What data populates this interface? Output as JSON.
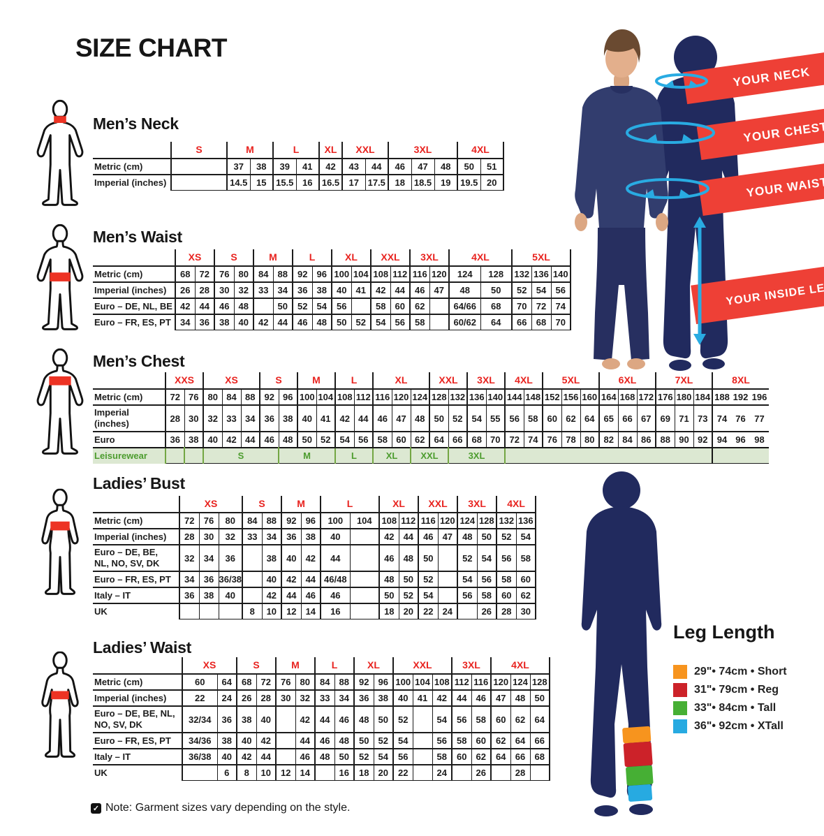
{
  "page": {
    "title": "SIZE CHART",
    "note": "Note: Garment sizes vary depending on the style."
  },
  "accent": {
    "red": "#e8231f",
    "ribbon_red": "#ee4036",
    "navy": "#212a5e",
    "cyan": "#29abe2",
    "green_text": "#4c9c2e",
    "green_bg": "#dce8d2"
  },
  "art": {
    "ribbons": [
      "YOUR NECK",
      "YOUR CHEST",
      "YOUR WAIST",
      "YOUR INSIDE LEG"
    ]
  },
  "leg_length": {
    "title": "Leg Length",
    "items": [
      {
        "color": "#f7941e",
        "label": "29\"• 74cm • Short"
      },
      {
        "color": "#cc2229",
        "label": "31\"• 79cm • Reg"
      },
      {
        "color": "#46af34",
        "label": "33\"• 84cm • Tall"
      },
      {
        "color": "#27aae1",
        "label": "36\"• 92cm • XTall"
      }
    ]
  },
  "sections": [
    {
      "id": "mens-neck",
      "title": "Men’s Neck",
      "label_w": 112,
      "cols": [
        80,
        33,
        33,
        33,
        33,
        33,
        33,
        33,
        33,
        33,
        33,
        33,
        33
      ],
      "groups": [
        {
          "l": "S",
          "s": 1
        },
        {
          "l": "M",
          "s": 2
        },
        {
          "l": "L",
          "s": 2
        },
        {
          "l": "XL",
          "s": 1
        },
        {
          "l": "XXL",
          "s": 2
        },
        {
          "l": "3XL",
          "s": 3
        },
        {
          "l": "4XL",
          "s": 2
        }
      ],
      "rows": [
        {
          "label": "Metric (cm)",
          "cells": [
            "",
            "37",
            "38",
            "39",
            "41",
            "42",
            "43",
            "44",
            "46",
            "47",
            "48",
            "50",
            "51"
          ]
        },
        {
          "label": "Imperial (inches)",
          "cells": [
            "",
            "14.5",
            "15",
            "15.5",
            "16",
            "16.5",
            "17",
            "17.5",
            "18",
            "18.5",
            "19",
            "19.5",
            "20"
          ]
        }
      ]
    },
    {
      "id": "mens-waist",
      "title": "Men’s Waist",
      "label_w": 118,
      "cols": [
        28,
        28,
        28,
        28,
        28,
        28,
        28,
        28,
        28,
        28,
        28,
        28,
        28,
        28,
        45,
        45,
        28,
        28,
        28
      ],
      "groups": [
        {
          "l": "XS",
          "s": 2
        },
        {
          "l": "S",
          "s": 2
        },
        {
          "l": "M",
          "s": 2
        },
        {
          "l": "L",
          "s": 2
        },
        {
          "l": "XL",
          "s": 2
        },
        {
          "l": "XXL",
          "s": 2
        },
        {
          "l": "3XL",
          "s": 2
        },
        {
          "l": "4XL",
          "s": 2
        },
        {
          "l": "5XL",
          "s": 3
        }
      ],
      "rows": [
        {
          "label": "Metric (cm)",
          "cells": [
            "68",
            "72",
            "76",
            "80",
            "84",
            "88",
            "92",
            "96",
            "100",
            "104",
            "108",
            "112",
            "116",
            "120",
            "124",
            "128",
            "132",
            "136",
            "140"
          ]
        },
        {
          "label": "Imperial (inches)",
          "cells": [
            "26",
            "28",
            "30",
            "32",
            "33",
            "34",
            "36",
            "38",
            "40",
            "41",
            "42",
            "44",
            "46",
            "47",
            "48",
            "50",
            "52",
            "54",
            "56"
          ]
        },
        {
          "label": "Euro – DE, NL, BE",
          "cells": [
            "42",
            "44",
            "46",
            "48",
            "",
            "50",
            "52",
            "54",
            "56",
            "",
            "58",
            "60",
            "62",
            "",
            "64/66",
            "68",
            "70",
            "72",
            "74"
          ]
        },
        {
          "label": "Euro – FR, ES, PT",
          "cells": [
            "34",
            "36",
            "38",
            "40",
            "42",
            "44",
            "46",
            "48",
            "50",
            "52",
            "54",
            "56",
            "58",
            "",
            "60/62",
            "64",
            "66",
            "68",
            "70"
          ]
        }
      ]
    },
    {
      "id": "mens-chest",
      "title": "Men’s Chest",
      "label_w": 104,
      "cols": [
        27,
        27,
        27,
        27,
        27,
        27,
        27,
        27,
        27,
        27,
        27,
        27,
        27,
        27,
        27,
        27,
        27,
        27,
        27,
        27,
        27,
        27,
        27,
        27,
        27,
        27,
        27,
        27,
        27,
        27,
        27,
        27
      ],
      "groups": [
        {
          "l": "XXS",
          "s": 2
        },
        {
          "l": "XS",
          "s": 3
        },
        {
          "l": "S",
          "s": 2
        },
        {
          "l": "M",
          "s": 2
        },
        {
          "l": "L",
          "s": 2
        },
        {
          "l": "XL",
          "s": 3
        },
        {
          "l": "XXL",
          "s": 2
        },
        {
          "l": "3XL",
          "s": 2
        },
        {
          "l": "4XL",
          "s": 2
        },
        {
          "l": "5XL",
          "s": 3
        },
        {
          "l": "6XL",
          "s": 3
        },
        {
          "l": "7XL",
          "s": 3
        },
        {
          "l": "8XL",
          "s": 3,
          "open": true
        }
      ],
      "rows": [
        {
          "label": "Metric (cm)",
          "cells": [
            "72",
            "76",
            "80",
            "84",
            "88",
            "92",
            "96",
            "100",
            "104",
            "108",
            "112",
            "116",
            "120",
            "124",
            "128",
            "132",
            "136",
            "140",
            "144",
            "148",
            "152",
            "156",
            "160",
            "164",
            "168",
            "172",
            "176",
            "180",
            "184",
            "188",
            "192",
            "196"
          ]
        },
        {
          "label": "Imperial (inches)",
          "cells": [
            "28",
            "30",
            "32",
            "33",
            "34",
            "36",
            "38",
            "40",
            "41",
            "42",
            "44",
            "46",
            "47",
            "48",
            "50",
            "52",
            "54",
            "55",
            "56",
            "58",
            "60",
            "62",
            "64",
            "65",
            "66",
            "67",
            "69",
            "71",
            "73",
            "74",
            "76",
            "77"
          ]
        },
        {
          "label": "Euro",
          "cells": [
            "36",
            "38",
            "40",
            "42",
            "44",
            "46",
            "48",
            "50",
            "52",
            "54",
            "56",
            "58",
            "60",
            "62",
            "64",
            "66",
            "68",
            "70",
            "72",
            "74",
            "76",
            "78",
            "80",
            "82",
            "84",
            "86",
            "88",
            "90",
            "92",
            "94",
            "96",
            "98"
          ]
        },
        {
          "label": "Leisurewear",
          "cls": "leisure",
          "cells": [
            "",
            "",
            {
              "v": "S",
              "s": 4
            },
            {
              "v": "M",
              "s": 3
            },
            {
              "v": "L",
              "s": 2
            },
            {
              "v": "XL",
              "s": 2
            },
            {
              "v": "XXL",
              "s": 2
            },
            {
              "v": "3XL",
              "s": 3
            },
            {
              "v": "",
              "s": 11,
              "k": "kb"
            },
            {
              "v": "",
              "s": 3
            }
          ]
        }
      ]
    },
    {
      "id": "ladies-bust",
      "title": "Ladies’ Bust",
      "label_w": 124,
      "cols": [
        28,
        28,
        28,
        28,
        28,
        28,
        28,
        42,
        42,
        28,
        28,
        28,
        28,
        28,
        28,
        28,
        28
      ],
      "groups": [
        {
          "l": "XS",
          "s": 3
        },
        {
          "l": "S",
          "s": 2
        },
        {
          "l": "M",
          "s": 2
        },
        {
          "l": "L",
          "s": 2
        },
        {
          "l": "XL",
          "s": 2
        },
        {
          "l": "XXL",
          "s": 2
        },
        {
          "l": "3XL",
          "s": 2
        },
        {
          "l": "4XL",
          "s": 2
        }
      ],
      "rows": [
        {
          "label": "Metric (cm)",
          "cells": [
            "72",
            "76",
            "80",
            "84",
            "88",
            "92",
            "96",
            "100",
            "104",
            "108",
            "112",
            "116",
            "120",
            "124",
            "128",
            "132",
            "136"
          ]
        },
        {
          "label": "Imperial (inches)",
          "cells": [
            "28",
            "30",
            "32",
            "33",
            "34",
            "36",
            "38",
            "40",
            "",
            "42",
            "44",
            "46",
            "47",
            "48",
            "50",
            "52",
            "54"
          ]
        },
        {
          "label": "Euro –  DE, BE,\nNL, NO, SV, DK",
          "cells": [
            "32",
            "34",
            "36",
            "",
            "38",
            "40",
            "42",
            "44",
            "",
            "46",
            "48",
            "50",
            "",
            "52",
            "54",
            "56",
            "58"
          ]
        },
        {
          "label": "Euro – FR, ES, PT",
          "cells": [
            "34",
            "36",
            "36/38",
            "",
            "40",
            "42",
            "44",
            "46/48",
            "",
            "48",
            "50",
            "52",
            "",
            "54",
            "56",
            "58",
            "60"
          ]
        },
        {
          "label": "Italy – IT",
          "cells": [
            "36",
            "38",
            "40",
            "",
            "42",
            "44",
            "46",
            "46",
            "",
            "50",
            "52",
            "54",
            "",
            "56",
            "58",
            "60",
            "62"
          ]
        },
        {
          "label": "UK",
          "cells": [
            "",
            "",
            "",
            "8",
            "10",
            "12",
            "14",
            "16",
            "",
            "18",
            "20",
            "22",
            "24",
            "",
            "26",
            "28",
            "30"
          ]
        }
      ]
    },
    {
      "id": "ladies-waist",
      "title": "Ladies’ Waist",
      "label_w": 128,
      "cols": [
        50,
        28,
        28,
        28,
        28,
        28,
        28,
        28,
        28,
        28,
        28,
        28,
        28,
        28,
        28,
        28,
        28,
        28
      ],
      "groups": [
        {
          "l": "XS",
          "s": 2
        },
        {
          "l": "S",
          "s": 2
        },
        {
          "l": "M",
          "s": 2
        },
        {
          "l": "L",
          "s": 2
        },
        {
          "l": "XL",
          "s": 2
        },
        {
          "l": "XXL",
          "s": 3
        },
        {
          "l": "3XL",
          "s": 2
        },
        {
          "l": "4XL",
          "s": 3
        }
      ],
      "rows": [
        {
          "label": "Metric (cm)",
          "cells": [
            "60",
            "64",
            "68",
            "72",
            "76",
            "80",
            "84",
            "88",
            "92",
            "96",
            "100",
            "104",
            "108",
            "112",
            "116",
            "120",
            "124",
            "128"
          ]
        },
        {
          "label": "Imperial (inches)",
          "cells": [
            "22",
            "24",
            "26",
            "28",
            "30",
            "32",
            "33",
            "34",
            "36",
            "38",
            "40",
            "41",
            "42",
            "44",
            "46",
            "47",
            "48",
            "50"
          ]
        },
        {
          "label": "Euro – DE, BE, NL,\nNO, SV, DK",
          "cells": [
            "32/34",
            "36",
            "38",
            "40",
            "",
            "42",
            "44",
            "46",
            "48",
            "50",
            "52",
            "",
            "54",
            "56",
            "58",
            "60",
            "62",
            "64"
          ]
        },
        {
          "label": "Euro – FR, ES, PT",
          "cells": [
            "34/36",
            "38",
            "40",
            "42",
            "",
            "44",
            "46",
            "48",
            "50",
            "52",
            "54",
            "",
            "56",
            "58",
            "60",
            "62",
            "64",
            "66"
          ]
        },
        {
          "label": "Italy – IT",
          "cells": [
            "36/38",
            "40",
            "42",
            "44",
            "",
            "46",
            "48",
            "50",
            "52",
            "54",
            "56",
            "",
            "58",
            "60",
            "62",
            "64",
            "66",
            "68"
          ]
        },
        {
          "label": "UK",
          "cells": [
            "",
            "6",
            "8",
            "10",
            "12",
            "14",
            "",
            "16",
            "18",
            "20",
            "22",
            "",
            "24",
            "",
            "26",
            "",
            "28",
            ""
          ]
        }
      ]
    }
  ]
}
